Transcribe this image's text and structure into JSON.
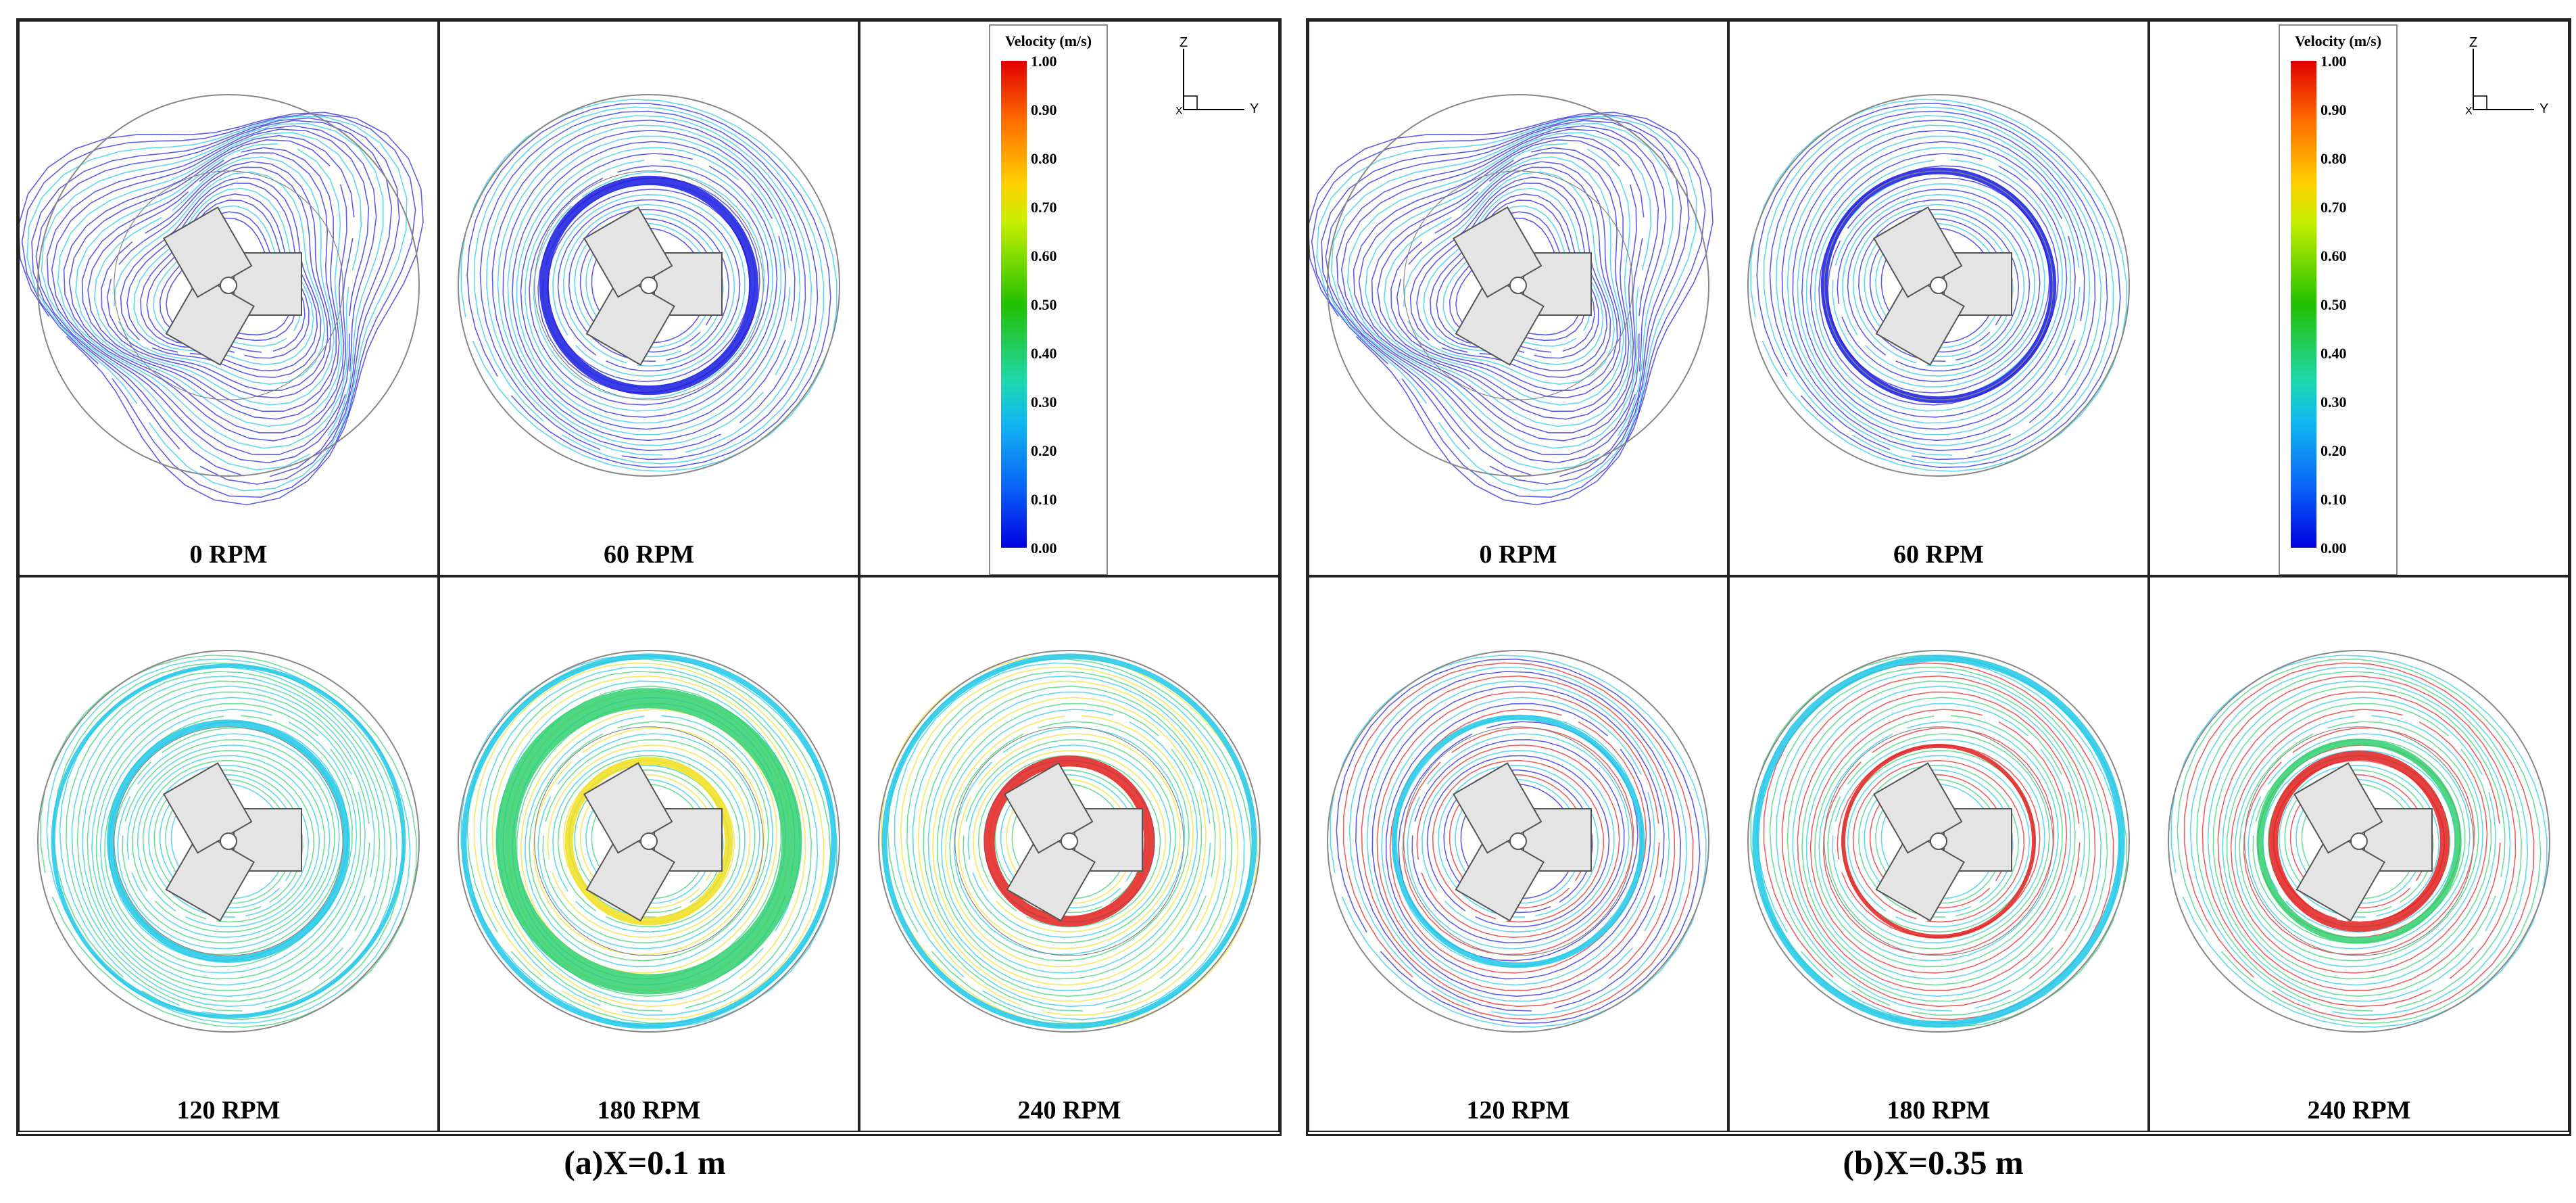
{
  "panels": [
    {
      "caption": "(a)X=0.1 m",
      "cells": [
        {
          "label": "0 RPM"
        },
        {
          "label": "60 RPM"
        },
        {
          "label": "120 RPM"
        },
        {
          "label": "180 RPM"
        },
        {
          "label": "240 RPM"
        }
      ],
      "legend": {
        "title": "Velocity (m/s)",
        "ticks": [
          "1.00",
          "0.90",
          "0.80",
          "0.70",
          "0.60",
          "0.50",
          "0.40",
          "0.30",
          "0.20",
          "0.10",
          "0.00"
        ]
      },
      "axes": {
        "z": "Z",
        "y": "Y",
        "x": "X"
      }
    },
    {
      "caption": "(b)X=0.35 m",
      "cells": [
        {
          "label": "0 RPM"
        },
        {
          "label": "60 RPM"
        },
        {
          "label": "120 RPM"
        },
        {
          "label": "180 RPM"
        },
        {
          "label": "240 RPM"
        }
      ],
      "legend": {
        "title": "Velocity (m/s)",
        "ticks": [
          "1.00",
          "0.90",
          "0.80",
          "0.70",
          "0.60",
          "0.50",
          "0.40",
          "0.30",
          "0.20",
          "0.10",
          "0.00"
        ]
      },
      "axes": {
        "z": "Z",
        "y": "Y",
        "x": "X"
      }
    }
  ],
  "colors": {
    "low": "#1a1ae0",
    "mid_low": "#20c8e8",
    "mid": "#30d070",
    "mid_high": "#f0e020",
    "high": "#e02020",
    "tank_outline": "#888888",
    "impeller_fill": "#e4e4e4"
  }
}
